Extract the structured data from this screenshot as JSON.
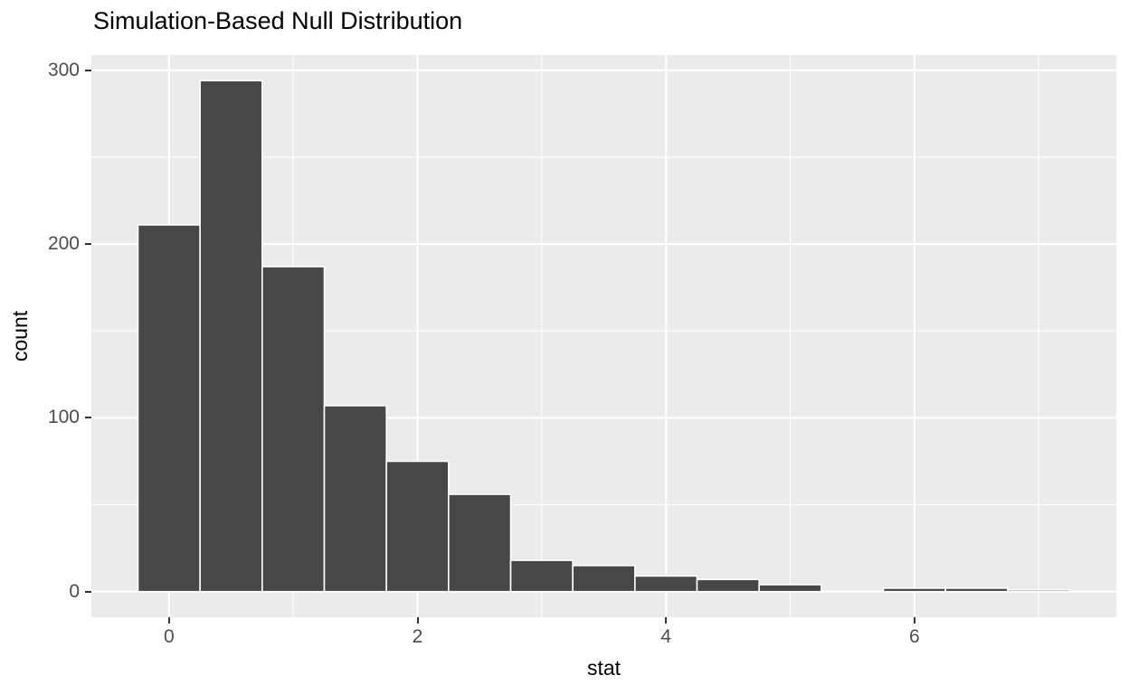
{
  "figure": {
    "title": "Simulation-Based Null Distribution"
  },
  "chart_data": {
    "type": "bar",
    "subtype": "histogram",
    "title": "Simulation-Based Null Distribution",
    "xlabel": "stat",
    "ylabel": "count",
    "bin_width": 0.5,
    "bin_centers": [
      0,
      0.5,
      1,
      1.5,
      2,
      2.5,
      3,
      3.5,
      4,
      4.5,
      5,
      5.5,
      6,
      6.5,
      7
    ],
    "counts": [
      211,
      294,
      187,
      107,
      75,
      56,
      18,
      15,
      9,
      7,
      4,
      0,
      2,
      2,
      1
    ],
    "x_ticks_major": [
      0,
      2,
      4,
      6
    ],
    "x_tick_labels": [
      "0",
      "2",
      "4",
      "6"
    ],
    "x_ticks_minor": [
      1,
      3,
      5,
      7
    ],
    "y_ticks_major": [
      0,
      100,
      200,
      300
    ],
    "y_tick_labels": [
      "0",
      "100",
      "200",
      "300"
    ],
    "y_ticks_minor": [
      50,
      150,
      250
    ],
    "xlim": [
      -0.625,
      7.625
    ],
    "ylim": [
      -14.7,
      308.7
    ],
    "grid": "on",
    "legend": "none",
    "colors": {
      "bar_fill": "#474747",
      "bar_border": "#FFFFFF",
      "panel_bg": "#EBEBEB",
      "grid": "#FFFFFF",
      "tick_label": "#4D4D4D",
      "tick_mark": "#333333",
      "title": "#000000",
      "axis_label": "#000000",
      "figure_bg": "#FFFFFF"
    }
  }
}
